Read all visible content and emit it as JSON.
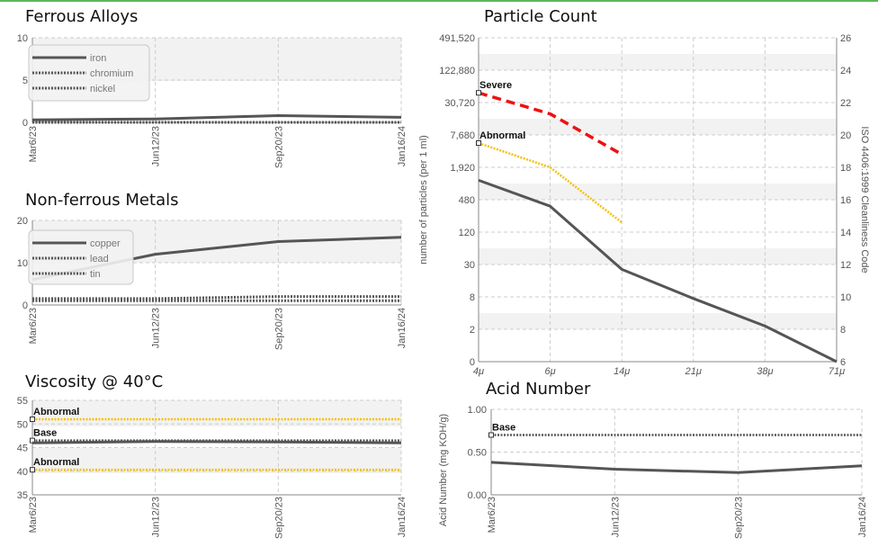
{
  "colors": {
    "line": "#555555",
    "severe": "#ee1111",
    "abnormal": "#f5c000",
    "grid": "#cccccc",
    "band": "#f2f2f2"
  },
  "chart_data": [
    {
      "id": "ferrous",
      "type": "line",
      "title": "Ferrous Alloys",
      "x_ticks": [
        "Mar6/23",
        "Jun12/23",
        "Sep20/23",
        "Jan16/24"
      ],
      "y_ticks": [
        "10",
        "5",
        "0"
      ],
      "ylim": [
        0,
        10
      ],
      "legend": [
        "iron",
        "chromium",
        "nickel"
      ],
      "series": [
        {
          "name": "iron",
          "style": "solid",
          "values": [
            0.3,
            0.4,
            0.8,
            0.6
          ]
        },
        {
          "name": "chromium",
          "style": "dotted",
          "values": [
            0.0,
            0.0,
            0.0,
            0.0
          ]
        },
        {
          "name": "nickel",
          "style": "dotted",
          "values": [
            0.0,
            0.0,
            0.0,
            0.0
          ]
        }
      ]
    },
    {
      "id": "nonferrous",
      "type": "line",
      "title": "Non-ferrous Metals",
      "x_ticks": [
        "Mar6/23",
        "Jun12/23",
        "Sep20/23",
        "Jan16/24"
      ],
      "y_ticks": [
        "20",
        "10",
        "0"
      ],
      "ylim": [
        0,
        20
      ],
      "legend": [
        "copper",
        "lead",
        "tin"
      ],
      "series": [
        {
          "name": "copper",
          "style": "solid",
          "values": [
            6,
            12,
            15,
            16
          ]
        },
        {
          "name": "lead",
          "style": "dotted",
          "values": [
            1.5,
            1.5,
            2,
            2
          ]
        },
        {
          "name": "tin",
          "style": "dotted",
          "values": [
            1,
            1,
            1,
            1
          ]
        }
      ]
    },
    {
      "id": "viscosity",
      "type": "line",
      "title": "Viscosity @ 40°C",
      "x_ticks": [
        "Mar6/23",
        "Jun12/23",
        "Sep20/23",
        "Jan16/24"
      ],
      "y_ticks": [
        "55",
        "50",
        "45",
        "40",
        "35"
      ],
      "ylim": [
        35,
        55
      ],
      "references": [
        {
          "label": "Abnormal",
          "value": 51,
          "kind": "abnormal"
        },
        {
          "label": "Base",
          "value": 46.5,
          "kind": "base"
        },
        {
          "label": "Abnormal",
          "value": 40.3,
          "kind": "abnormal"
        }
      ],
      "series": [
        {
          "style": "solid",
          "values": [
            46,
            46.3,
            46.2,
            46
          ]
        }
      ]
    },
    {
      "id": "particle",
      "type": "line",
      "title": "Particle Count",
      "x_ticks": [
        "4μ",
        "6μ",
        "14μ",
        "21μ",
        "38μ",
        "71μ"
      ],
      "y_ticks": [
        "491,520",
        "122,880",
        "30,720",
        "7,680",
        "1,920",
        "480",
        "120",
        "30",
        "8",
        "2",
        "0"
      ],
      "y2_ticks": [
        "26",
        "24",
        "22",
        "20",
        "18",
        "16",
        "14",
        "12",
        "10",
        "8",
        "6"
      ],
      "ylabel": "number of particles (per 1 ml)",
      "y2label": "ISO 4406:1999 Cleanliness Code",
      "references": [
        {
          "label": "Severe",
          "kind": "severe",
          "codes": [
            22.6,
            21.3,
            18.8
          ]
        },
        {
          "label": "Abnormal",
          "kind": "abnormal",
          "codes": [
            19.5,
            18.0,
            14.6
          ]
        }
      ],
      "series": [
        {
          "style": "solid",
          "codes": [
            17.2,
            15.6,
            11.7,
            9.9,
            8.2,
            6.0
          ]
        }
      ]
    },
    {
      "id": "acid",
      "type": "line",
      "title": "Acid Number",
      "x_ticks": [
        "Mar6/23",
        "Jun12/23",
        "Sep20/23",
        "Jan16/24"
      ],
      "y_ticks": [
        "1.00",
        "0.50",
        "0.00"
      ],
      "ylim": [
        0,
        1
      ],
      "ylabel": "Acid Number (mg KOH/g)",
      "references": [
        {
          "label": "Base",
          "value": 0.7,
          "kind": "base"
        }
      ],
      "series": [
        {
          "style": "solid",
          "values": [
            0.38,
            0.3,
            0.26,
            0.34
          ]
        }
      ]
    }
  ]
}
